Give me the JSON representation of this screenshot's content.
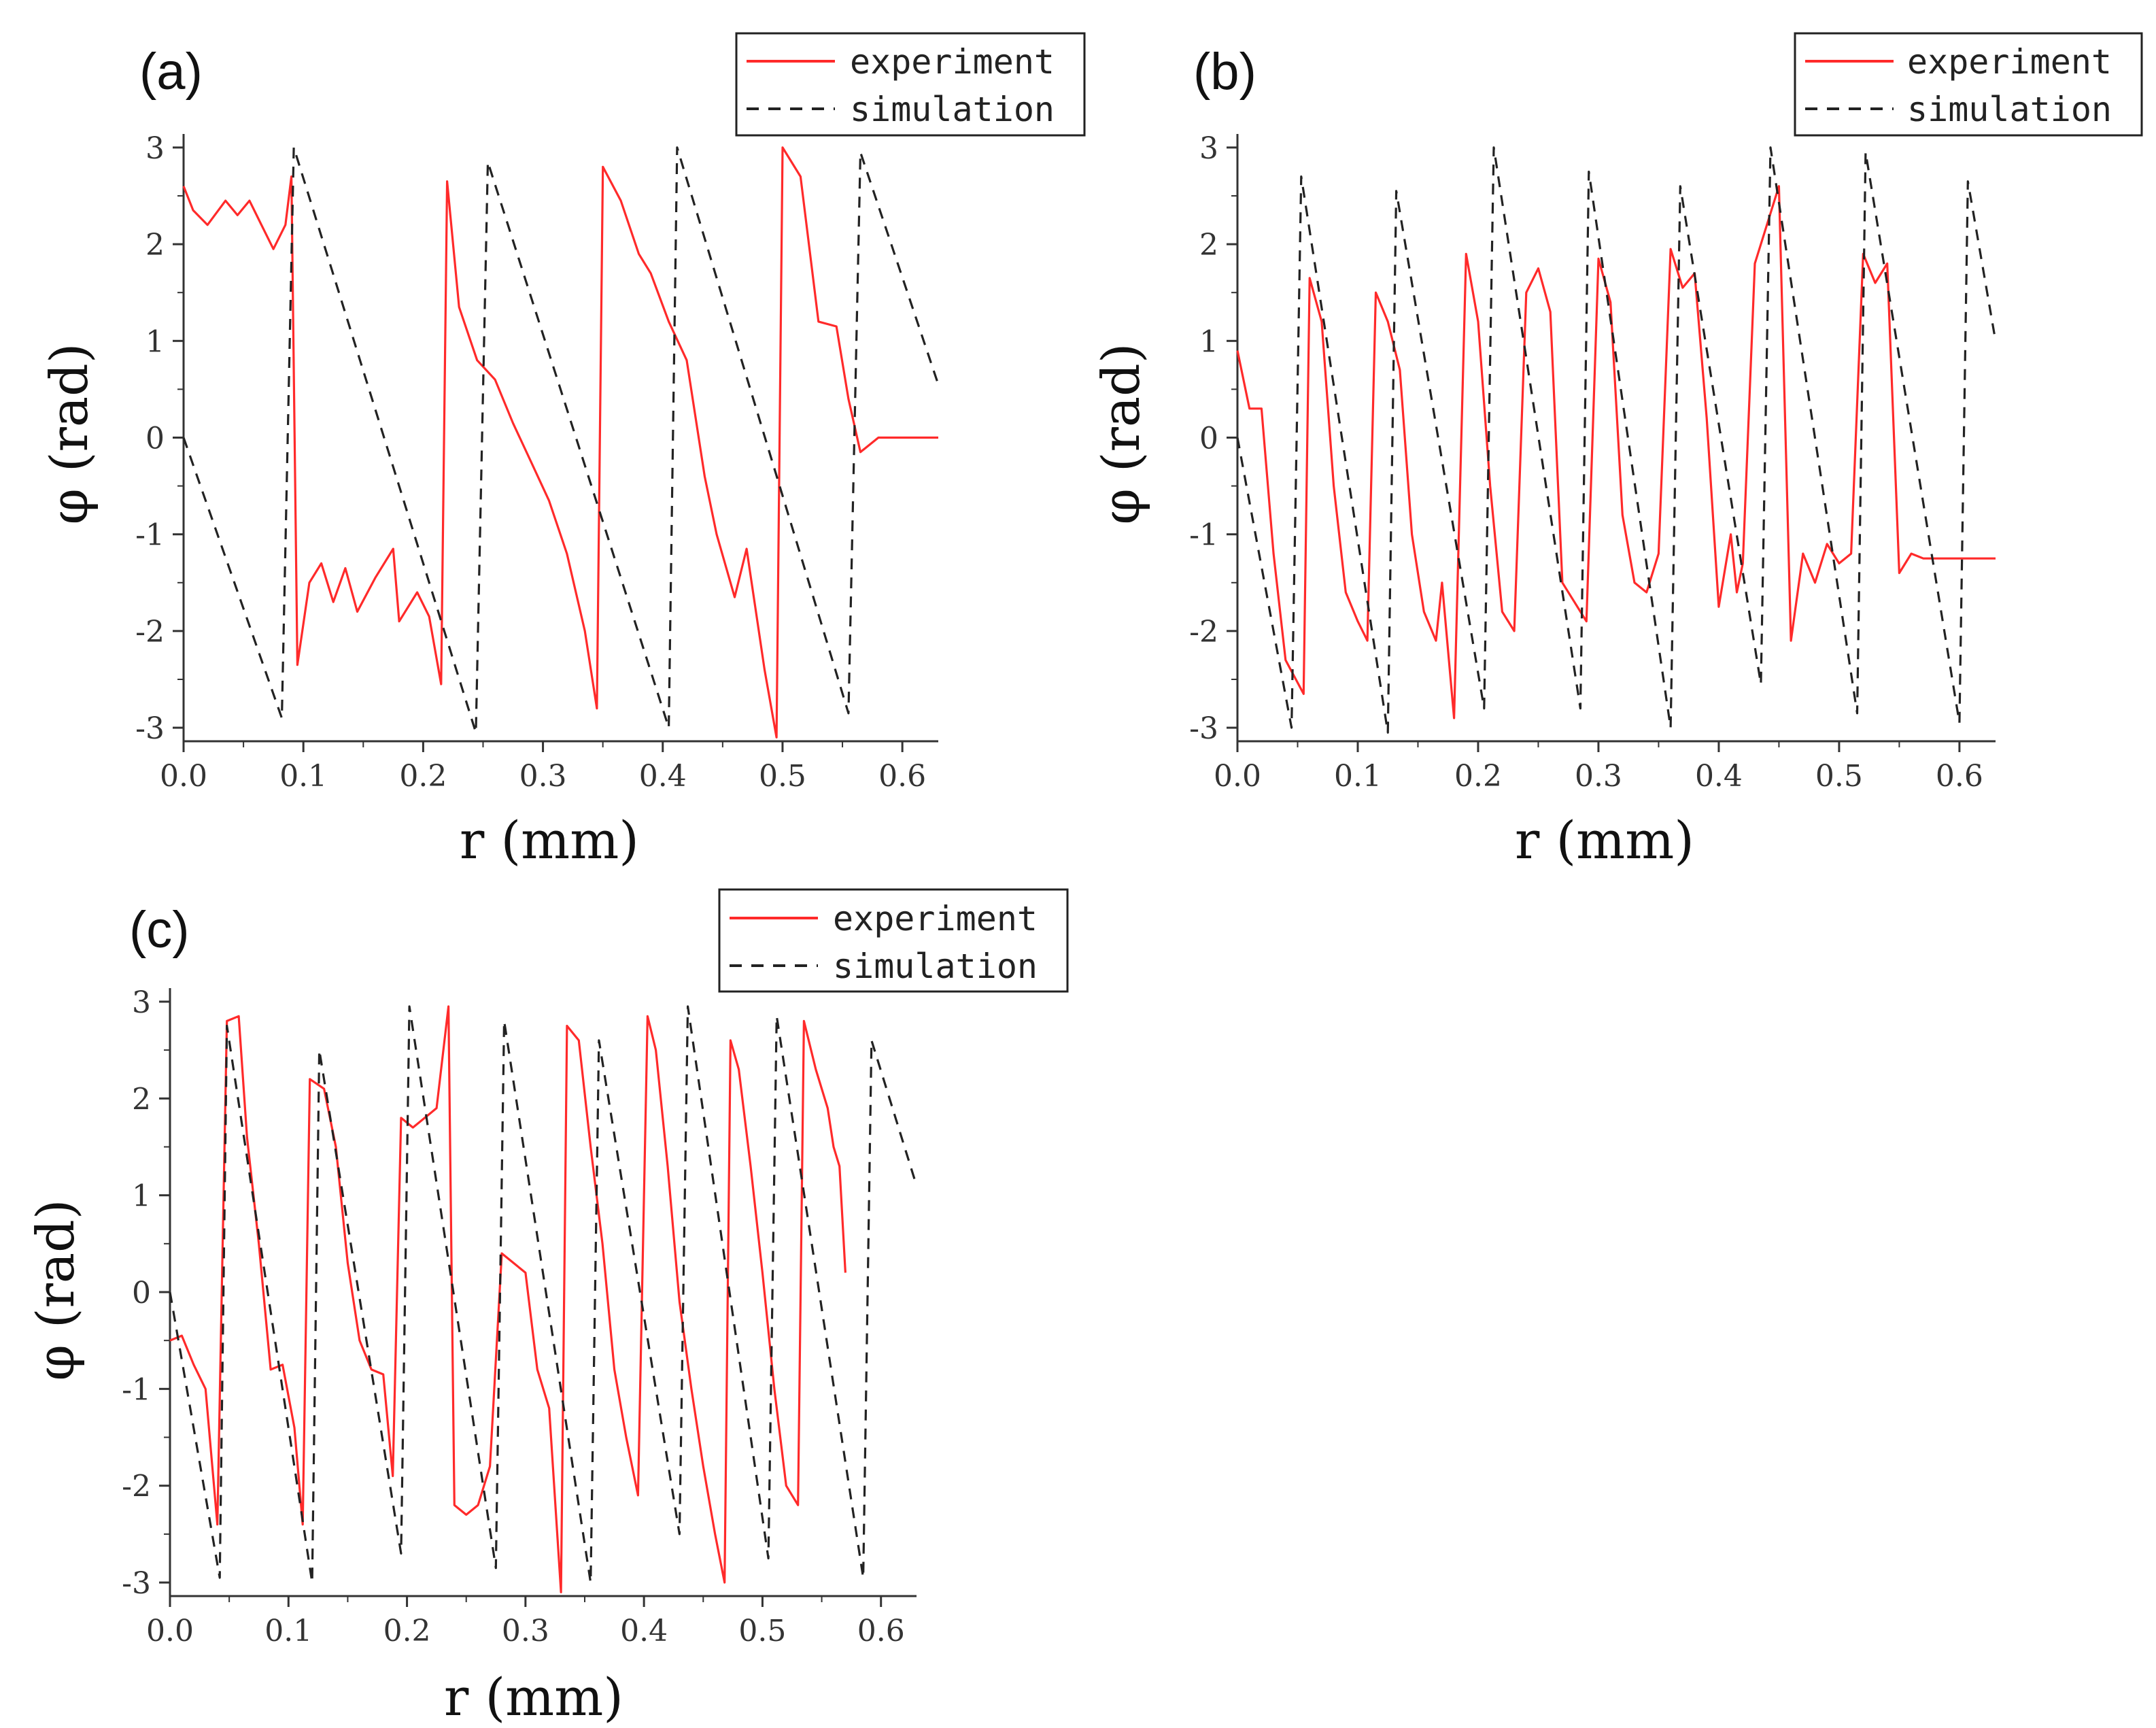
{
  "chart_data": [
    {
      "type": "line",
      "panel_label": "(a)",
      "xlabel": "r (mm)",
      "ylabel": "φ (rad)",
      "xlim": [
        0,
        0.63
      ],
      "ylim": [
        -3.14,
        3.14
      ],
      "x_ticks": [
        "0.0",
        "0.1",
        "0.2",
        "0.3",
        "0.4",
        "0.5",
        "0.6"
      ],
      "y_ticks": [
        "3",
        "2",
        "1",
        "0",
        "-1",
        "-2",
        "-3"
      ],
      "legend": {
        "position": "top-right",
        "entries": [
          "experiment",
          "simulation"
        ]
      },
      "series": [
        {
          "name": "experiment",
          "color": "#ff2a2a",
          "style": "solid",
          "points": [
            [
              0.0,
              2.6
            ],
            [
              0.008,
              2.35
            ],
            [
              0.02,
              2.2
            ],
            [
              0.035,
              2.45
            ],
            [
              0.045,
              2.3
            ],
            [
              0.055,
              2.45
            ],
            [
              0.065,
              2.2
            ],
            [
              0.075,
              1.95
            ],
            [
              0.085,
              2.2
            ],
            [
              0.09,
              2.7
            ],
            [
              0.095,
              -2.35
            ],
            [
              0.105,
              -1.5
            ],
            [
              0.115,
              -1.3
            ],
            [
              0.125,
              -1.7
            ],
            [
              0.135,
              -1.35
            ],
            [
              0.145,
              -1.8
            ],
            [
              0.16,
              -1.45
            ],
            [
              0.175,
              -1.15
            ],
            [
              0.18,
              -1.9
            ],
            [
              0.195,
              -1.6
            ],
            [
              0.205,
              -1.85
            ],
            [
              0.215,
              -2.55
            ],
            [
              0.22,
              2.65
            ],
            [
              0.23,
              1.35
            ],
            [
              0.245,
              0.8
            ],
            [
              0.26,
              0.6
            ],
            [
              0.275,
              0.15
            ],
            [
              0.29,
              -0.25
            ],
            [
              0.305,
              -0.65
            ],
            [
              0.32,
              -1.2
            ],
            [
              0.335,
              -2.0
            ],
            [
              0.345,
              -2.8
            ],
            [
              0.35,
              2.8
            ],
            [
              0.365,
              2.45
            ],
            [
              0.38,
              1.9
            ],
            [
              0.39,
              1.7
            ],
            [
              0.405,
              1.2
            ],
            [
              0.42,
              0.8
            ],
            [
              0.435,
              -0.4
            ],
            [
              0.445,
              -1.0
            ],
            [
              0.46,
              -1.65
            ],
            [
              0.47,
              -1.15
            ],
            [
              0.485,
              -2.4
            ],
            [
              0.495,
              -3.1
            ],
            [
              0.5,
              3.0
            ],
            [
              0.515,
              2.7
            ],
            [
              0.53,
              1.2
            ],
            [
              0.545,
              1.15
            ],
            [
              0.555,
              0.4
            ],
            [
              0.565,
              -0.15
            ],
            [
              0.58,
              0.0
            ],
            [
              0.63,
              0.0
            ]
          ]
        },
        {
          "name": "simulation",
          "color": "#222222",
          "style": "dashed",
          "points": [
            [
              0.0,
              0.0
            ],
            [
              0.082,
              -2.9
            ],
            [
              0.092,
              3.0
            ],
            [
              0.244,
              -3.05
            ],
            [
              0.254,
              2.85
            ],
            [
              0.405,
              -3.0
            ],
            [
              0.412,
              3.0
            ],
            [
              0.555,
              -2.85
            ],
            [
              0.565,
              2.95
            ],
            [
              0.63,
              0.55
            ]
          ]
        }
      ]
    },
    {
      "type": "line",
      "panel_label": "(b)",
      "xlabel": "r (mm)",
      "ylabel": "φ (rad)",
      "xlim": [
        0,
        0.63
      ],
      "ylim": [
        -3.14,
        3.14
      ],
      "x_ticks": [
        "0.0",
        "0.1",
        "0.2",
        "0.3",
        "0.4",
        "0.5",
        "0.6"
      ],
      "y_ticks": [
        "3",
        "2",
        "1",
        "0",
        "-1",
        "-2",
        "-3"
      ],
      "legend": {
        "position": "top-right",
        "entries": [
          "experiment",
          "simulation"
        ]
      },
      "series": [
        {
          "name": "experiment",
          "color": "#ff2a2a",
          "style": "solid",
          "points": [
            [
              0.0,
              0.9
            ],
            [
              0.01,
              0.3
            ],
            [
              0.02,
              0.3
            ],
            [
              0.03,
              -1.2
            ],
            [
              0.04,
              -2.3
            ],
            [
              0.055,
              -2.65
            ],
            [
              0.06,
              1.65
            ],
            [
              0.07,
              1.2
            ],
            [
              0.08,
              -0.5
            ],
            [
              0.09,
              -1.6
            ],
            [
              0.1,
              -1.9
            ],
            [
              0.108,
              -2.1
            ],
            [
              0.115,
              1.5
            ],
            [
              0.125,
              1.2
            ],
            [
              0.135,
              0.7
            ],
            [
              0.145,
              -1.0
            ],
            [
              0.155,
              -1.8
            ],
            [
              0.165,
              -2.1
            ],
            [
              0.17,
              -1.5
            ],
            [
              0.18,
              -2.9
            ],
            [
              0.19,
              1.9
            ],
            [
              0.2,
              1.2
            ],
            [
              0.21,
              -0.5
            ],
            [
              0.22,
              -1.8
            ],
            [
              0.23,
              -2.0
            ],
            [
              0.24,
              1.5
            ],
            [
              0.25,
              1.75
            ],
            [
              0.26,
              1.3
            ],
            [
              0.27,
              -1.5
            ],
            [
              0.28,
              -1.7
            ],
            [
              0.29,
              -1.9
            ],
            [
              0.3,
              1.85
            ],
            [
              0.31,
              1.4
            ],
            [
              0.32,
              -0.8
            ],
            [
              0.33,
              -1.5
            ],
            [
              0.34,
              -1.6
            ],
            [
              0.35,
              -1.2
            ],
            [
              0.36,
              1.95
            ],
            [
              0.37,
              1.55
            ],
            [
              0.38,
              1.7
            ],
            [
              0.39,
              0.2
            ],
            [
              0.4,
              -1.75
            ],
            [
              0.41,
              -1.0
            ],
            [
              0.415,
              -1.6
            ],
            [
              0.42,
              -1.3
            ],
            [
              0.43,
              1.8
            ],
            [
              0.44,
              2.2
            ],
            [
              0.45,
              2.6
            ],
            [
              0.46,
              -2.1
            ],
            [
              0.47,
              -1.2
            ],
            [
              0.48,
              -1.5
            ],
            [
              0.49,
              -1.1
            ],
            [
              0.5,
              -1.3
            ],
            [
              0.51,
              -1.2
            ],
            [
              0.52,
              1.9
            ],
            [
              0.53,
              1.6
            ],
            [
              0.54,
              1.8
            ],
            [
              0.55,
              -1.4
            ],
            [
              0.56,
              -1.2
            ],
            [
              0.57,
              -1.25
            ],
            [
              0.63,
              -1.25
            ]
          ]
        },
        {
          "name": "simulation",
          "color": "#222222",
          "style": "dashed",
          "points": [
            [
              0.0,
              0.0
            ],
            [
              0.045,
              -3.0
            ],
            [
              0.053,
              2.7
            ],
            [
              0.125,
              -3.05
            ],
            [
              0.132,
              2.55
            ],
            [
              0.205,
              -2.8
            ],
            [
              0.213,
              3.0
            ],
            [
              0.285,
              -2.8
            ],
            [
              0.292,
              2.75
            ],
            [
              0.36,
              -3.0
            ],
            [
              0.368,
              2.6
            ],
            [
              0.435,
              -2.55
            ],
            [
              0.443,
              3.0
            ],
            [
              0.515,
              -2.85
            ],
            [
              0.522,
              2.95
            ],
            [
              0.6,
              -2.95
            ],
            [
              0.607,
              2.65
            ],
            [
              0.63,
              1.0
            ]
          ]
        }
      ]
    },
    {
      "type": "line",
      "panel_label": "(c)",
      "xlabel": "r (mm)",
      "ylabel": "φ (rad)",
      "xlim": [
        0,
        0.63
      ],
      "ylim": [
        -3.14,
        3.14
      ],
      "x_ticks": [
        "0.0",
        "0.1",
        "0.2",
        "0.3",
        "0.4",
        "0.5",
        "0.6"
      ],
      "y_ticks": [
        "3",
        "2",
        "1",
        "0",
        "-1",
        "-2",
        "-3"
      ],
      "legend": {
        "position": "top-right",
        "entries": [
          "experiment",
          "simulation"
        ]
      },
      "series": [
        {
          "name": "experiment",
          "color": "#ff2a2a",
          "style": "solid",
          "points": [
            [
              0.0,
              -0.5
            ],
            [
              0.01,
              -0.45
            ],
            [
              0.02,
              -0.75
            ],
            [
              0.03,
              -1.0
            ],
            [
              0.04,
              -2.4
            ],
            [
              0.048,
              2.8
            ],
            [
              0.058,
              2.85
            ],
            [
              0.065,
              1.6
            ],
            [
              0.075,
              0.5
            ],
            [
              0.085,
              -0.8
            ],
            [
              0.095,
              -0.75
            ],
            [
              0.105,
              -1.4
            ],
            [
              0.112,
              -2.4
            ],
            [
              0.118,
              2.2
            ],
            [
              0.13,
              2.1
            ],
            [
              0.14,
              1.5
            ],
            [
              0.15,
              0.3
            ],
            [
              0.16,
              -0.5
            ],
            [
              0.17,
              -0.8
            ],
            [
              0.18,
              -0.85
            ],
            [
              0.188,
              -1.9
            ],
            [
              0.195,
              1.8
            ],
            [
              0.205,
              1.7
            ],
            [
              0.215,
              1.8
            ],
            [
              0.225,
              1.9
            ],
            [
              0.235,
              2.95
            ],
            [
              0.24,
              -2.2
            ],
            [
              0.25,
              -2.3
            ],
            [
              0.26,
              -2.2
            ],
            [
              0.27,
              -1.8
            ],
            [
              0.28,
              0.4
            ],
            [
              0.29,
              0.3
            ],
            [
              0.3,
              0.2
            ],
            [
              0.31,
              -0.8
            ],
            [
              0.32,
              -1.2
            ],
            [
              0.33,
              -3.1
            ],
            [
              0.335,
              2.75
            ],
            [
              0.345,
              2.6
            ],
            [
              0.355,
              1.5
            ],
            [
              0.365,
              0.5
            ],
            [
              0.375,
              -0.8
            ],
            [
              0.385,
              -1.5
            ],
            [
              0.395,
              -2.1
            ],
            [
              0.403,
              2.85
            ],
            [
              0.41,
              2.5
            ],
            [
              0.42,
              1.3
            ],
            [
              0.43,
              -0.1
            ],
            [
              0.44,
              -1.0
            ],
            [
              0.45,
              -1.8
            ],
            [
              0.46,
              -2.5
            ],
            [
              0.468,
              -3.0
            ],
            [
              0.473,
              2.6
            ],
            [
              0.48,
              2.3
            ],
            [
              0.49,
              1.3
            ],
            [
              0.5,
              0.2
            ],
            [
              0.51,
              -1.0
            ],
            [
              0.52,
              -2.0
            ],
            [
              0.53,
              -2.2
            ],
            [
              0.535,
              2.8
            ],
            [
              0.545,
              2.3
            ],
            [
              0.555,
              1.9
            ],
            [
              0.56,
              1.5
            ],
            [
              0.565,
              1.3
            ],
            [
              0.57,
              0.2
            ]
          ]
        },
        {
          "name": "simulation",
          "color": "#222222",
          "style": "dashed",
          "points": [
            [
              0.0,
              0.0
            ],
            [
              0.042,
              -2.95
            ],
            [
              0.048,
              2.75
            ],
            [
              0.12,
              -3.0
            ],
            [
              0.126,
              2.5
            ],
            [
              0.195,
              -2.7
            ],
            [
              0.202,
              2.95
            ],
            [
              0.275,
              -2.85
            ],
            [
              0.282,
              2.8
            ],
            [
              0.355,
              -3.0
            ],
            [
              0.362,
              2.6
            ],
            [
              0.43,
              -2.5
            ],
            [
              0.437,
              2.95
            ],
            [
              0.505,
              -2.75
            ],
            [
              0.512,
              2.85
            ],
            [
              0.585,
              -2.95
            ],
            [
              0.592,
              2.6
            ],
            [
              0.63,
              1.1
            ]
          ]
        }
      ]
    }
  ]
}
